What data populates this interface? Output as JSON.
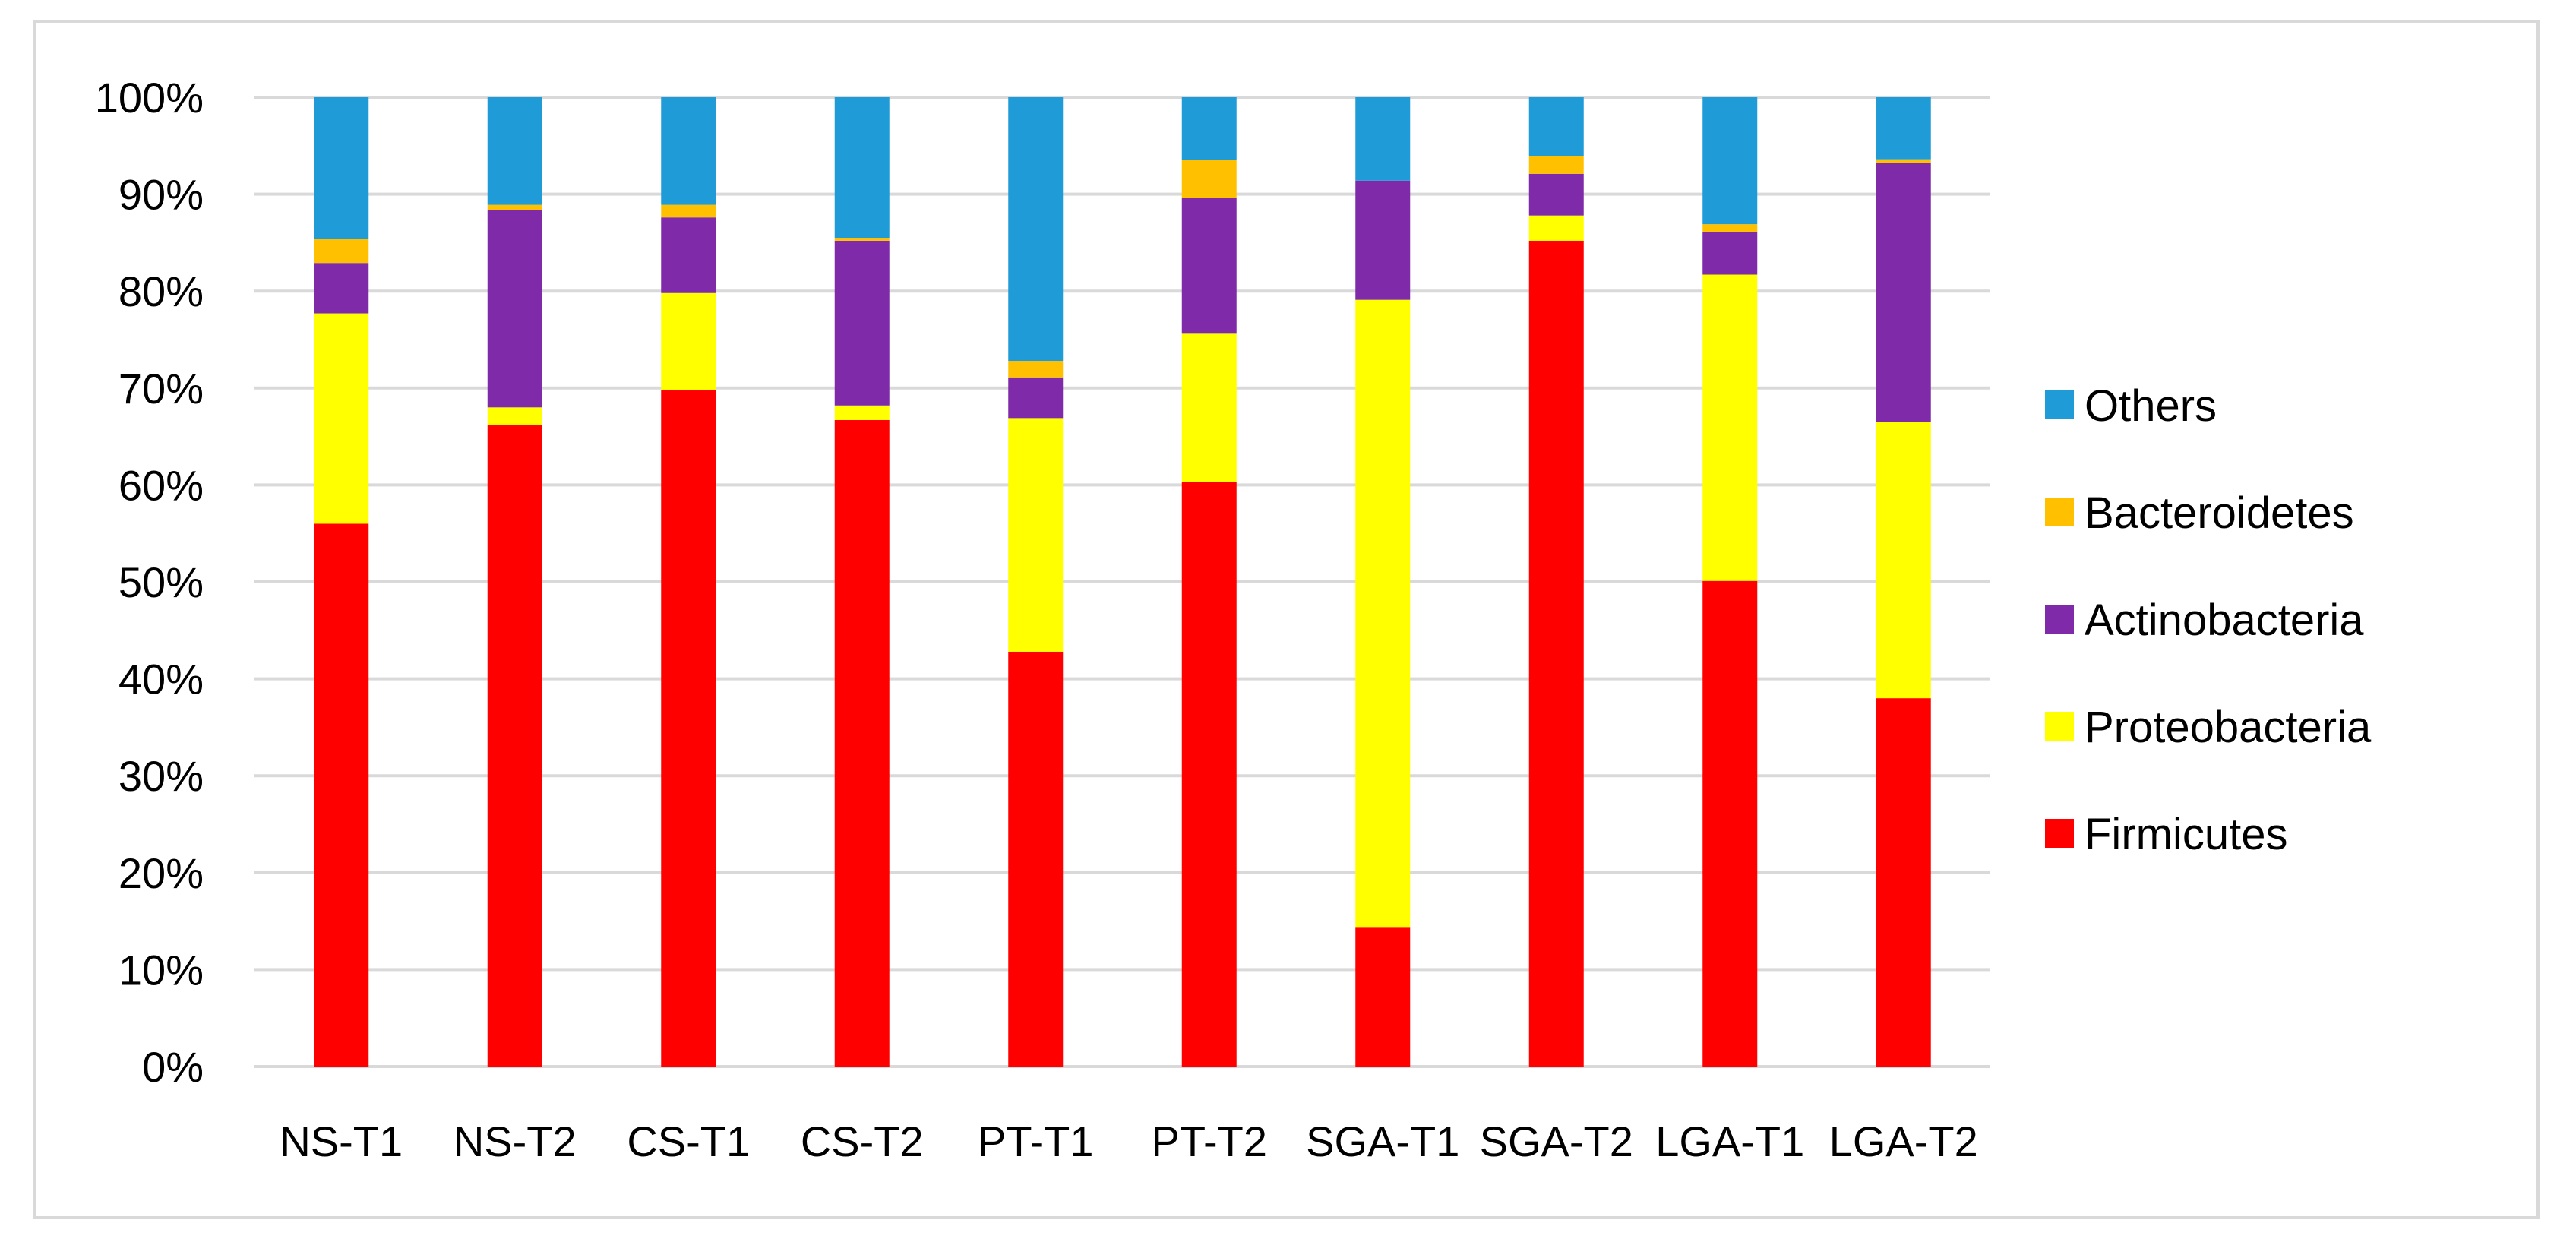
{
  "chart_data": {
    "type": "bar",
    "stacked": true,
    "percent": true,
    "title": "",
    "xlabel": "",
    "ylabel": "",
    "ylim": [
      0,
      100
    ],
    "yticks": [
      "0%",
      "10%",
      "20%",
      "30%",
      "40%",
      "50%",
      "60%",
      "70%",
      "80%",
      "90%",
      "100%"
    ],
    "grid": true,
    "legend_position": "right",
    "categories": [
      "NS-T1",
      "NS-T2",
      "CS-T1",
      "CS-T2",
      "PT-T1",
      "PT-T2",
      "SGA-T1",
      "SGA-T2",
      "LGA-T1",
      "LGA-T2"
    ],
    "series": [
      {
        "name": "Firmicutes",
        "color": "#ff0000",
        "values": [
          56.0,
          66.2,
          69.8,
          66.7,
          42.8,
          60.3,
          14.4,
          85.2,
          50.1,
          38.0
        ]
      },
      {
        "name": "Proteobacteria",
        "color": "#ffff00",
        "values": [
          21.7,
          1.8,
          10.0,
          1.5,
          24.1,
          15.3,
          64.7,
          2.6,
          31.6,
          28.5
        ]
      },
      {
        "name": "Actinobacteria",
        "color": "#7f2aa8",
        "values": [
          5.2,
          20.4,
          7.8,
          17.0,
          4.2,
          14.0,
          12.3,
          4.3,
          4.4,
          26.7
        ]
      },
      {
        "name": "Bacteroidetes",
        "color": "#ffc000",
        "values": [
          2.5,
          0.5,
          1.3,
          0.3,
          1.7,
          3.9,
          0.0,
          1.8,
          0.8,
          0.4
        ]
      },
      {
        "name": "Others",
        "color": "#1f9bd7",
        "values": [
          14.6,
          11.1,
          11.1,
          14.5,
          27.2,
          6.5,
          8.6,
          6.1,
          13.1,
          6.4
        ]
      }
    ],
    "legend_order": [
      "Others",
      "Bacteroidetes",
      "Actinobacteria",
      "Proteobacteria",
      "Firmicutes"
    ]
  }
}
